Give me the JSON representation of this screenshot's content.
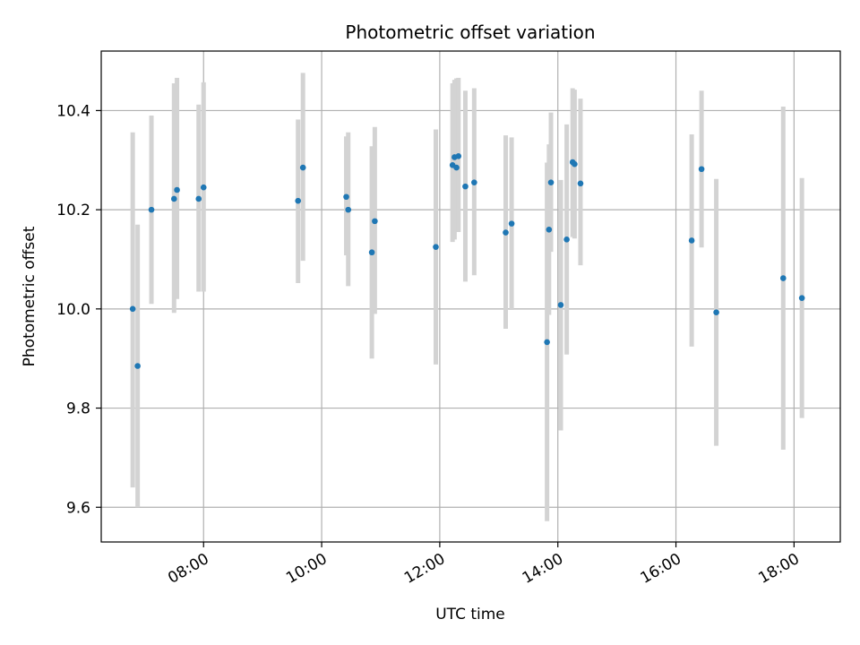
{
  "chart_data": {
    "type": "scatter",
    "title": "Photometric offset variation",
    "xlabel": "UTC time",
    "ylabel": "Photometric offset",
    "grid": true,
    "x_ticks": [
      "08:00",
      "10:00",
      "12:00",
      "14:00",
      "16:00",
      "18:00"
    ],
    "y_ticks": [
      "9.6",
      "9.8",
      "10.0",
      "10.2",
      "10.4"
    ],
    "xlim": [
      "06:16",
      "18:47"
    ],
    "ylim": [
      9.53,
      10.52
    ],
    "colors": {
      "point": "#1f77b4",
      "errorbar": "#d3d3d3",
      "grid": "#b0b0b0"
    },
    "points": [
      {
        "x": "06:48",
        "y": 10.0,
        "ylo": 9.64,
        "yhi": 10.356
      },
      {
        "x": "06:53",
        "y": 9.885,
        "ylo": 9.6,
        "yhi": 10.17
      },
      {
        "x": "07:07",
        "y": 10.2,
        "ylo": 10.01,
        "yhi": 10.39
      },
      {
        "x": "07:30",
        "y": 10.222,
        "ylo": 9.992,
        "yhi": 10.455
      },
      {
        "x": "07:33",
        "y": 10.24,
        "ylo": 10.02,
        "yhi": 10.466
      },
      {
        "x": "07:55",
        "y": 10.222,
        "ylo": 10.035,
        "yhi": 10.412
      },
      {
        "x": "08:00",
        "y": 10.245,
        "ylo": 10.035,
        "yhi": 10.457
      },
      {
        "x": "09:36",
        "y": 10.218,
        "ylo": 10.052,
        "yhi": 10.382
      },
      {
        "x": "09:41",
        "y": 10.285,
        "ylo": 10.097,
        "yhi": 10.476
      },
      {
        "x": "10:25",
        "y": 10.226,
        "ylo": 10.108,
        "yhi": 10.348
      },
      {
        "x": "10:27",
        "y": 10.2,
        "ylo": 10.046,
        "yhi": 10.356
      },
      {
        "x": "10:51",
        "y": 10.114,
        "ylo": 9.9,
        "yhi": 10.328
      },
      {
        "x": "10:54",
        "y": 10.177,
        "ylo": 9.99,
        "yhi": 10.367
      },
      {
        "x": "11:56",
        "y": 10.125,
        "ylo": 9.888,
        "yhi": 10.362
      },
      {
        "x": "12:13",
        "y": 10.29,
        "ylo": 10.135,
        "yhi": 10.455
      },
      {
        "x": "12:15",
        "y": 10.306,
        "ylo": 10.14,
        "yhi": 10.462
      },
      {
        "x": "12:17",
        "y": 10.285,
        "ylo": 10.17,
        "yhi": 10.465
      },
      {
        "x": "12:19",
        "y": 10.308,
        "ylo": 10.155,
        "yhi": 10.466
      },
      {
        "x": "12:26",
        "y": 10.247,
        "ylo": 10.055,
        "yhi": 10.44
      },
      {
        "x": "12:35",
        "y": 10.255,
        "ylo": 10.068,
        "yhi": 10.445
      },
      {
        "x": "13:07",
        "y": 10.154,
        "ylo": 9.96,
        "yhi": 10.35
      },
      {
        "x": "13:13",
        "y": 10.172,
        "ylo": 9.998,
        "yhi": 10.346
      },
      {
        "x": "13:49",
        "y": 9.933,
        "ylo": 9.572,
        "yhi": 10.295
      },
      {
        "x": "13:51",
        "y": 10.16,
        "ylo": 9.988,
        "yhi": 10.332
      },
      {
        "x": "13:53",
        "y": 10.255,
        "ylo": 10.115,
        "yhi": 10.396
      },
      {
        "x": "14:03",
        "y": 10.008,
        "ylo": 9.755,
        "yhi": 10.26
      },
      {
        "x": "14:09",
        "y": 10.14,
        "ylo": 9.908,
        "yhi": 10.372
      },
      {
        "x": "14:15",
        "y": 10.296,
        "ylo": 10.145,
        "yhi": 10.445
      },
      {
        "x": "14:17",
        "y": 10.292,
        "ylo": 10.142,
        "yhi": 10.442
      },
      {
        "x": "14:23",
        "y": 10.253,
        "ylo": 10.088,
        "yhi": 10.424
      },
      {
        "x": "16:16",
        "y": 10.138,
        "ylo": 9.924,
        "yhi": 10.352
      },
      {
        "x": "16:26",
        "y": 10.282,
        "ylo": 10.124,
        "yhi": 10.44
      },
      {
        "x": "16:41",
        "y": 9.993,
        "ylo": 9.724,
        "yhi": 10.262
      },
      {
        "x": "17:49",
        "y": 10.062,
        "ylo": 9.716,
        "yhi": 10.408
      },
      {
        "x": "18:08",
        "y": 10.022,
        "ylo": 9.78,
        "yhi": 10.264
      }
    ]
  }
}
